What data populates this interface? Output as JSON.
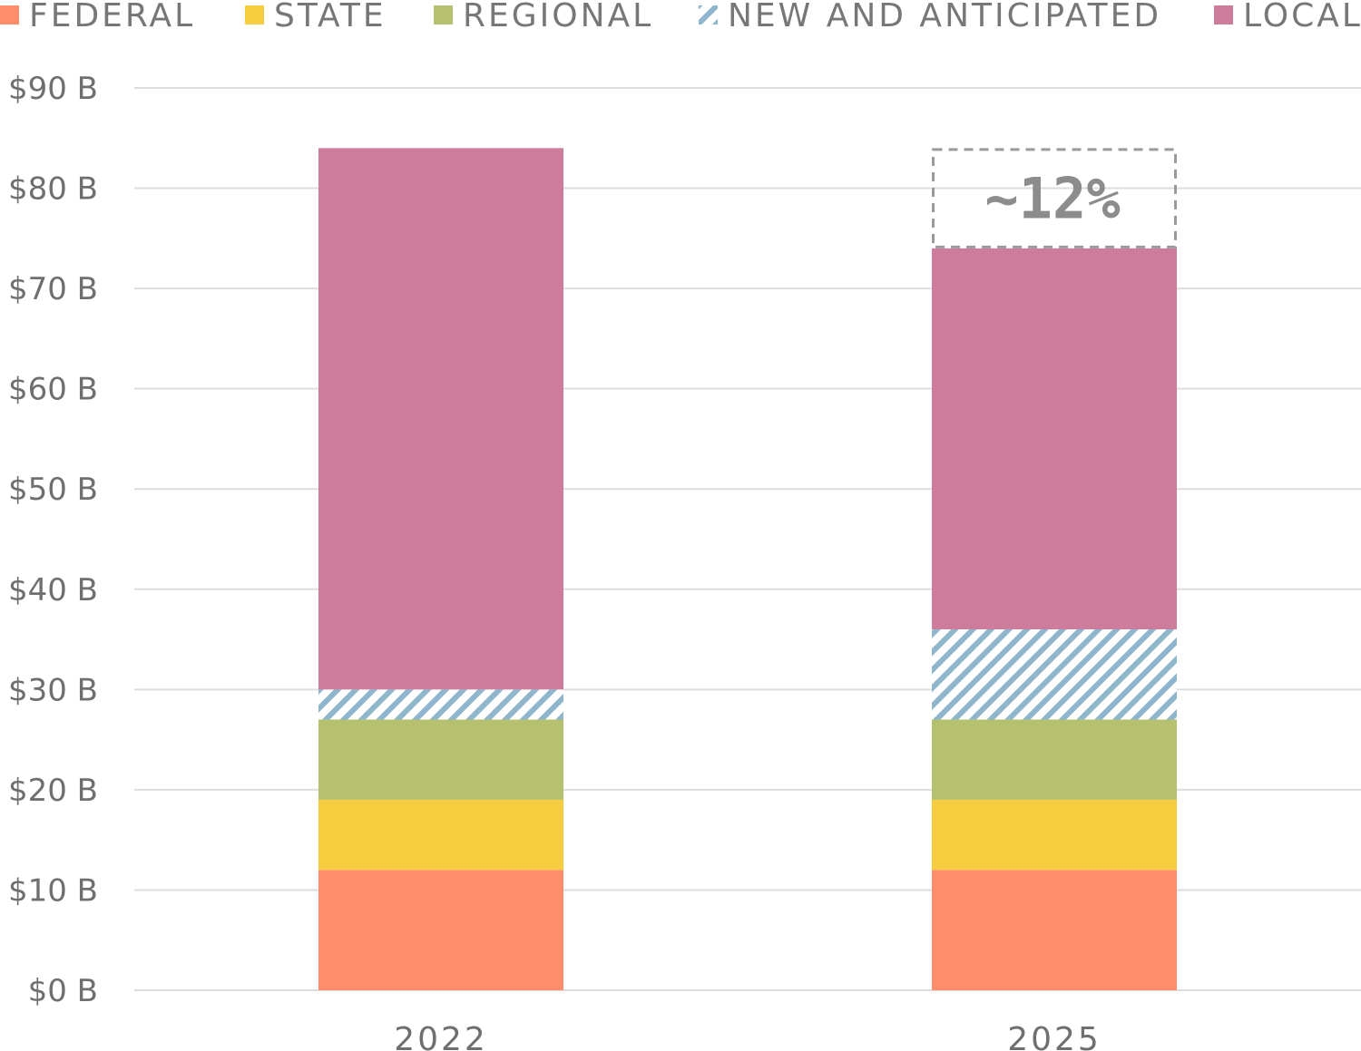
{
  "chart_data": {
    "type": "bar",
    "stacked": true,
    "categories": [
      "2022",
      "2025"
    ],
    "series": [
      {
        "name": "FEDERAL",
        "color": "#ff8c6b",
        "pattern": "solid",
        "values": [
          12,
          12
        ]
      },
      {
        "name": "STATE",
        "color": "#f5cd3e",
        "pattern": "solid",
        "values": [
          7,
          7
        ]
      },
      {
        "name": "REGIONAL",
        "color": "#b6c16f",
        "pattern": "solid",
        "values": [
          8,
          8
        ]
      },
      {
        "name": "NEW AND ANTICIPATED",
        "color": "#8fb6cc",
        "pattern": "hatched",
        "values": [
          3,
          9
        ]
      },
      {
        "name": "LOCAL",
        "color": "#cd7c9c",
        "pattern": "solid",
        "values": [
          54,
          38
        ]
      }
    ],
    "ylim": [
      0,
      90
    ],
    "yticks": [
      0,
      10,
      20,
      30,
      40,
      50,
      60,
      70,
      80,
      90
    ],
    "ytick_labels": [
      "$0 B",
      "$10 B",
      "$20 B",
      "$30 B",
      "$40 B",
      "$50 B",
      "$60 B",
      "$70 B",
      "$80 B",
      "$90 B"
    ],
    "grid": true,
    "legend": "top",
    "title": "",
    "xlabel": "",
    "ylabel": "",
    "annotations": [
      {
        "category": "2025",
        "text": "~12%",
        "from": 74,
        "to": 84,
        "style": "dashed-box"
      }
    ]
  }
}
